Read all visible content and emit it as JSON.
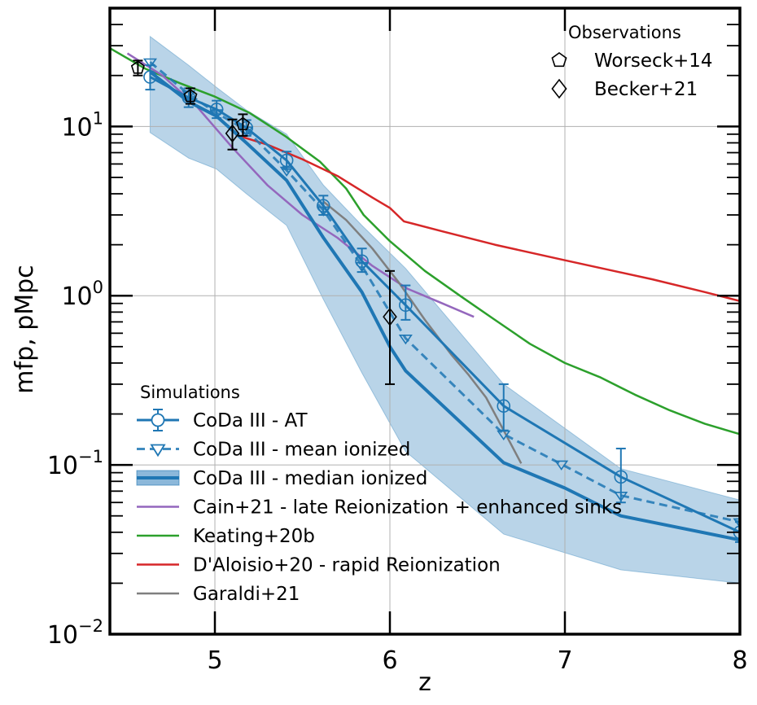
{
  "chart_data": {
    "type": "line",
    "xlabel": "z",
    "ylabel": "mfp, pMpc",
    "xlim": [
      4.4,
      8.0
    ],
    "ylim": [
      0.01,
      50
    ],
    "yscale": "log",
    "grid": true,
    "x_ticks": [
      {
        "value": 5,
        "label": "5"
      },
      {
        "value": 6,
        "label": "6"
      },
      {
        "value": 7,
        "label": "7"
      },
      {
        "value": 8,
        "label": "8"
      }
    ],
    "y_ticks": [
      {
        "value": 0.01,
        "base": "10",
        "exp": "−2"
      },
      {
        "value": 0.1,
        "base": "10",
        "exp": "−1"
      },
      {
        "value": 1,
        "base": "10",
        "exp": "0"
      },
      {
        "value": 10,
        "base": "10",
        "exp": "1"
      }
    ],
    "colors": {
      "coda": "#1f77b4",
      "coda_band": "#7fb0d6",
      "cain": "#9467bd",
      "keating": "#2ca02c",
      "daloisio": "#d62728",
      "garaldi": "#7f7f7f",
      "obs": "#000000"
    },
    "observations": {
      "title": "Observations",
      "datasets": [
        {
          "key": "worseck",
          "label": "Worseck+14",
          "marker": "pentagon",
          "points": [
            {
              "x": 4.56,
              "y": 22.2,
              "lo": 20.0,
              "hi": 24.5
            },
            {
              "x": 4.86,
              "y": 15.1,
              "lo": 13.6,
              "hi": 16.8
            },
            {
              "x": 5.16,
              "y": 10.3,
              "lo": 8.8,
              "hi": 11.8
            }
          ]
        },
        {
          "key": "becker",
          "label": "Becker+21",
          "marker": "diamond",
          "points": [
            {
              "x": 5.1,
              "y": 9.09,
              "lo": 7.3,
              "hi": 11.0
            },
            {
              "x": 6.0,
              "y": 0.75,
              "lo": 0.3,
              "hi": 1.4
            }
          ]
        }
      ]
    },
    "simulations": {
      "title": "Simulations",
      "series": [
        {
          "key": "coda_at",
          "name": "CoDa III - AT",
          "style": "solid-errbar-circle",
          "points": [
            {
              "x": 4.63,
              "y": 19.6,
              "lo": 16.5,
              "hi": 23.0
            },
            {
              "x": 4.85,
              "y": 14.8,
              "lo": 13.0,
              "hi": 16.8
            },
            {
              "x": 5.01,
              "y": 12.6,
              "lo": 11.2,
              "hi": 14.2
            },
            {
              "x": 5.18,
              "y": 9.8,
              "lo": 8.8,
              "hi": 10.9
            },
            {
              "x": 5.41,
              "y": 6.3,
              "lo": 5.6,
              "hi": 7.1
            },
            {
              "x": 5.62,
              "y": 3.4,
              "lo": 3.0,
              "hi": 3.9
            },
            {
              "x": 5.84,
              "y": 1.6,
              "lo": 1.38,
              "hi": 1.9
            },
            {
              "x": 6.09,
              "y": 0.88,
              "lo": 0.72,
              "hi": 1.15
            },
            {
              "x": 6.65,
              "y": 0.223,
              "lo": 0.16,
              "hi": 0.3
            },
            {
              "x": 7.32,
              "y": 0.085,
              "lo": 0.06,
              "hi": 0.125
            },
            {
              "x": 8.0,
              "y": 0.04,
              "lo": 0.035,
              "hi": 0.046
            }
          ]
        },
        {
          "key": "coda_mean",
          "name": "CoDa III - mean ionized",
          "style": "dashed-triangle",
          "points": [
            {
              "x": 4.63,
              "y": 24.0
            },
            {
              "x": 4.85,
              "y": 15.5
            },
            {
              "x": 5.01,
              "y": 12.0
            },
            {
              "x": 5.18,
              "y": 9.5
            },
            {
              "x": 5.41,
              "y": 5.5
            },
            {
              "x": 5.62,
              "y": 3.2
            },
            {
              "x": 5.84,
              "y": 1.5
            },
            {
              "x": 6.09,
              "y": 0.56
            },
            {
              "x": 6.65,
              "y": 0.152
            },
            {
              "x": 6.98,
              "y": 0.101
            },
            {
              "x": 7.32,
              "y": 0.066
            },
            {
              "x": 8.0,
              "y": 0.046
            }
          ]
        },
        {
          "key": "coda_median",
          "name": "CoDa III - median ionized",
          "style": "thick-band",
          "points": [
            {
              "x": 4.63,
              "y": 21.0
            },
            {
              "x": 4.85,
              "y": 14.0
            },
            {
              "x": 5.01,
              "y": 11.5
            },
            {
              "x": 5.18,
              "y": 8.0
            },
            {
              "x": 5.41,
              "y": 4.8
            },
            {
              "x": 5.62,
              "y": 2.2
            },
            {
              "x": 5.84,
              "y": 1.05
            },
            {
              "x": 6.0,
              "y": 0.5
            },
            {
              "x": 6.09,
              "y": 0.36
            },
            {
              "x": 6.65,
              "y": 0.103
            },
            {
              "x": 7.0,
              "y": 0.073
            },
            {
              "x": 7.32,
              "y": 0.05
            },
            {
              "x": 8.0,
              "y": 0.036
            }
          ],
          "band_x": [
            4.63,
            4.85,
            5.01,
            5.18,
            5.41,
            5.62,
            5.84,
            6.09,
            6.65,
            7.32,
            8.0
          ],
          "band_lo": [
            9.2,
            6.5,
            5.6,
            4.0,
            2.6,
            0.95,
            0.35,
            0.12,
            0.039,
            0.024,
            0.02
          ],
          "band_hi": [
            34.0,
            23.0,
            17.0,
            12.5,
            9.0,
            4.5,
            2.6,
            1.45,
            0.3,
            0.095,
            0.062
          ]
        },
        {
          "key": "cain",
          "name": "Cain+21 - late Reionization + enhanced sinks",
          "style": "solid",
          "points": [
            {
              "x": 4.5,
              "y": 27.0
            },
            {
              "x": 4.7,
              "y": 20.0
            },
            {
              "x": 4.9,
              "y": 13.0
            },
            {
              "x": 5.1,
              "y": 7.5
            },
            {
              "x": 5.3,
              "y": 4.5
            },
            {
              "x": 5.5,
              "y": 3.0
            },
            {
              "x": 5.7,
              "y": 2.2
            },
            {
              "x": 5.9,
              "y": 1.5
            },
            {
              "x": 6.1,
              "y": 1.1
            },
            {
              "x": 6.3,
              "y": 0.9
            },
            {
              "x": 6.48,
              "y": 0.75
            }
          ]
        },
        {
          "key": "keating",
          "name": "Keating+20b",
          "style": "solid",
          "points": [
            {
              "x": 4.4,
              "y": 29.0
            },
            {
              "x": 4.6,
              "y": 22.0
            },
            {
              "x": 4.8,
              "y": 18.0
            },
            {
              "x": 5.0,
              "y": 15.0
            },
            {
              "x": 5.2,
              "y": 12.0
            },
            {
              "x": 5.4,
              "y": 8.8
            },
            {
              "x": 5.6,
              "y": 6.2
            },
            {
              "x": 5.75,
              "y": 4.3
            },
            {
              "x": 5.85,
              "y": 3.0
            },
            {
              "x": 6.0,
              "y": 2.1
            },
            {
              "x": 6.2,
              "y": 1.4
            },
            {
              "x": 6.4,
              "y": 1.0
            },
            {
              "x": 6.6,
              "y": 0.72
            },
            {
              "x": 6.8,
              "y": 0.52
            },
            {
              "x": 7.0,
              "y": 0.4
            },
            {
              "x": 7.2,
              "y": 0.33
            },
            {
              "x": 7.4,
              "y": 0.26
            },
            {
              "x": 7.6,
              "y": 0.21
            },
            {
              "x": 7.8,
              "y": 0.175
            },
            {
              "x": 8.0,
              "y": 0.152
            }
          ]
        },
        {
          "key": "daloisio",
          "name": "D'Aloisio+20 - rapid Reionization",
          "style": "solid",
          "points": [
            {
              "x": 5.12,
              "y": 8.9
            },
            {
              "x": 5.3,
              "y": 7.8
            },
            {
              "x": 5.5,
              "y": 6.4
            },
            {
              "x": 5.7,
              "y": 5.1
            },
            {
              "x": 5.9,
              "y": 3.8
            },
            {
              "x": 6.0,
              "y": 3.3
            },
            {
              "x": 6.08,
              "y": 2.75
            },
            {
              "x": 6.3,
              "y": 2.4
            },
            {
              "x": 6.6,
              "y": 2.0
            },
            {
              "x": 7.0,
              "y": 1.62
            },
            {
              "x": 7.5,
              "y": 1.25
            },
            {
              "x": 7.8,
              "y": 1.05
            },
            {
              "x": 8.0,
              "y": 0.93
            }
          ]
        },
        {
          "key": "garaldi",
          "name": "Garaldi+21",
          "style": "solid",
          "points": [
            {
              "x": 5.62,
              "y": 3.6
            },
            {
              "x": 5.75,
              "y": 2.8
            },
            {
              "x": 5.9,
              "y": 1.9
            },
            {
              "x": 6.05,
              "y": 1.2
            },
            {
              "x": 6.2,
              "y": 0.72
            },
            {
              "x": 6.35,
              "y": 0.45
            },
            {
              "x": 6.45,
              "y": 0.34
            },
            {
              "x": 6.55,
              "y": 0.25
            },
            {
              "x": 6.65,
              "y": 0.16
            },
            {
              "x": 6.75,
              "y": 0.102
            }
          ]
        }
      ]
    }
  }
}
